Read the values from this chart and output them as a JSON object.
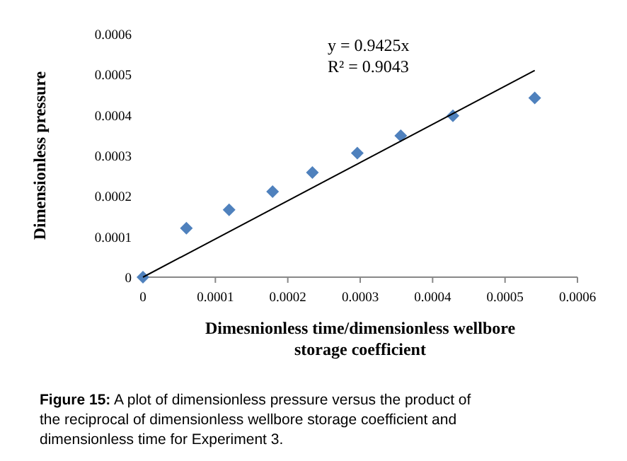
{
  "chart_data": {
    "type": "scatter",
    "xlabel": "Dimesnionless time/dimensionless  wellbore storage coefficient",
    "ylabel": "Dimensionless pressure",
    "series": [
      {
        "color": "#4f81bd",
        "marker": "diamond",
        "x": [
          0,
          6e-05,
          0.000119,
          0.000179,
          0.000234,
          0.000296,
          0.000356,
          0.000428,
          0.000541
        ],
        "values": [
          0,
          0.000121,
          0.000166,
          0.000211,
          0.000258,
          0.000306,
          0.000349,
          0.000398,
          0.000442
        ]
      },
      {
        "type": "line",
        "color": "#000000",
        "x": [
          0,
          0.000541
        ],
        "values": [
          0,
          0.00051
        ]
      }
    ],
    "xlim": [
      0,
      0.0006
    ],
    "xticks": [
      0,
      0.0001,
      0.0002,
      0.0003,
      0.0004,
      0.0005,
      0.0006
    ],
    "ylim": [
      0,
      0.0006
    ],
    "yticks": [
      0,
      0.0001,
      0.0002,
      0.0003,
      0.0004,
      0.0005,
      0.0006
    ],
    "grid": false,
    "annotations": [
      "y = 0.9425x",
      "R² = 0.9043",
      "Figure 15: A plot of dimensionless pressure versus the product of the reciprocal of dimensionless wellbore storage coefficient and dimensionless time for Experiment 3."
    ]
  }
}
